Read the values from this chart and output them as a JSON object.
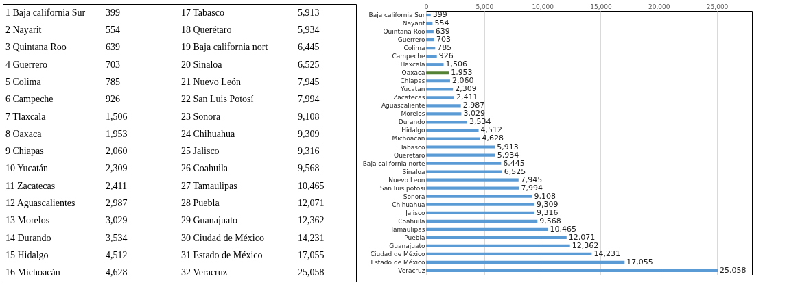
{
  "chart_data": [
    {
      "type": "other",
      "annotations": [
        "1 Baja california Sur",
        "399",
        "17 Tabasco",
        "5,913",
        "2 Nayarit",
        "554",
        "18 Querétaro",
        "5,934",
        "3 Quintana Roo",
        "639",
        "19 Baja california nort",
        "6,445",
        "4 Guerrero",
        "703",
        "20 Sinaloa",
        "6,525",
        "5 Colima",
        "785",
        "21 Nuevo León",
        "7,945",
        "6 Campeche",
        "926",
        "22 San Luis Potosí",
        "7,994",
        "7 Tlaxcala",
        "1,506",
        "23 Sonora",
        "9,108",
        "8 Oaxaca",
        "1,953",
        "24 Chihuahua",
        "9,309",
        "9 Chiapas",
        "2,060",
        "25 Jalisco",
        "9,316",
        "10 Yucatán",
        "2,309",
        "26 Coahuila",
        "9,568",
        "11 Zacatecas",
        "2,411",
        "27 Tamaulipas",
        "10,465",
        "12 Aguascalientes",
        "2,987",
        "28 Puebla",
        "12,071",
        "13 Morelos",
        "3,029",
        "29 Guanajuato",
        "12,362",
        "14 Durando",
        "3,534",
        "30 Ciudad de México",
        "14,231",
        "15 Hidalgo",
        "4,512",
        "31 Estado de México",
        "17,055",
        "16 Michoacán",
        "4,628",
        "32 Veracruz",
        "25,058"
      ]
    },
    {
      "type": "bar",
      "orientation": "horizontal",
      "categories": [
        "Baja california Sur",
        "Nayarit",
        "Quintana Roo",
        "Guerrero",
        "Colima",
        "Campeche",
        "Tlaxcala",
        "Oaxaca",
        "Chiapas",
        "Yucatan",
        "Zacatecas",
        "Aguascaliente",
        "Morelos",
        "Durando",
        "Hidalgo",
        "Michoacan",
        "Tabasco",
        "Queretaro",
        "Baja california norte",
        "Sinaloa",
        "Nuevo Leon",
        "San luis potosi",
        "Sonora",
        "Chihuahua",
        "Jalisco",
        "Coahuila",
        "Tamaulipas",
        "Puebla",
        "Guanajuato",
        "Ciudad de México",
        "Estado de México",
        "Veracruz"
      ],
      "values": [
        399,
        554,
        639,
        703,
        785,
        926,
        1506,
        1953,
        2060,
        2309,
        2411,
        2987,
        3029,
        3534,
        4512,
        4628,
        5913,
        5934,
        6445,
        6525,
        7945,
        7994,
        9108,
        9309,
        9316,
        9568,
        10465,
        12071,
        12362,
        14231,
        17055,
        25058
      ],
      "colors": [
        "#5b9bd5",
        "#5b9bd5",
        "#5b9bd5",
        "#5b9bd5",
        "#5b9bd5",
        "#5b9bd5",
        "#5b9bd5",
        "#548235",
        "#5b9bd5",
        "#5b9bd5",
        "#5b9bd5",
        "#5b9bd5",
        "#5b9bd5",
        "#5b9bd5",
        "#5b9bd5",
        "#5b9bd5",
        "#5b9bd5",
        "#5b9bd5",
        "#5b9bd5",
        "#5b9bd5",
        "#5b9bd5",
        "#5b9bd5",
        "#5b9bd5",
        "#5b9bd5",
        "#5b9bd5",
        "#5b9bd5",
        "#5b9bd5",
        "#5b9bd5",
        "#5b9bd5",
        "#5b9bd5",
        "#5b9bd5",
        "#5b9bd5"
      ],
      "value_labels": [
        "399",
        "554",
        "639",
        "703",
        "785",
        "926",
        "1,506",
        "1,953",
        "2,060",
        "2,309",
        "2,411",
        "2,987",
        "3,029",
        "3,534",
        "4,512",
        "4,628",
        "5,913",
        "5,934",
        "6,445",
        "6,525",
        "7,945",
        "7,994",
        "9,108",
        "9,309",
        "9,316",
        "9,568",
        "10,465",
        "12,071",
        "12,362",
        "14,231",
        "17,055",
        "25,058"
      ],
      "xlim": [
        0,
        28000
      ],
      "xticks": [
        0,
        {
          "value": 5000,
          "label": "5,000"
        },
        {
          "value": 10000,
          "label": "10,000"
        },
        {
          "value": 15000,
          "label": "15,000"
        },
        {
          "value": 20000,
          "label": "20,000"
        },
        {
          "value": 25000,
          "label": "25,000"
        }
      ],
      "grid": "x"
    }
  ]
}
